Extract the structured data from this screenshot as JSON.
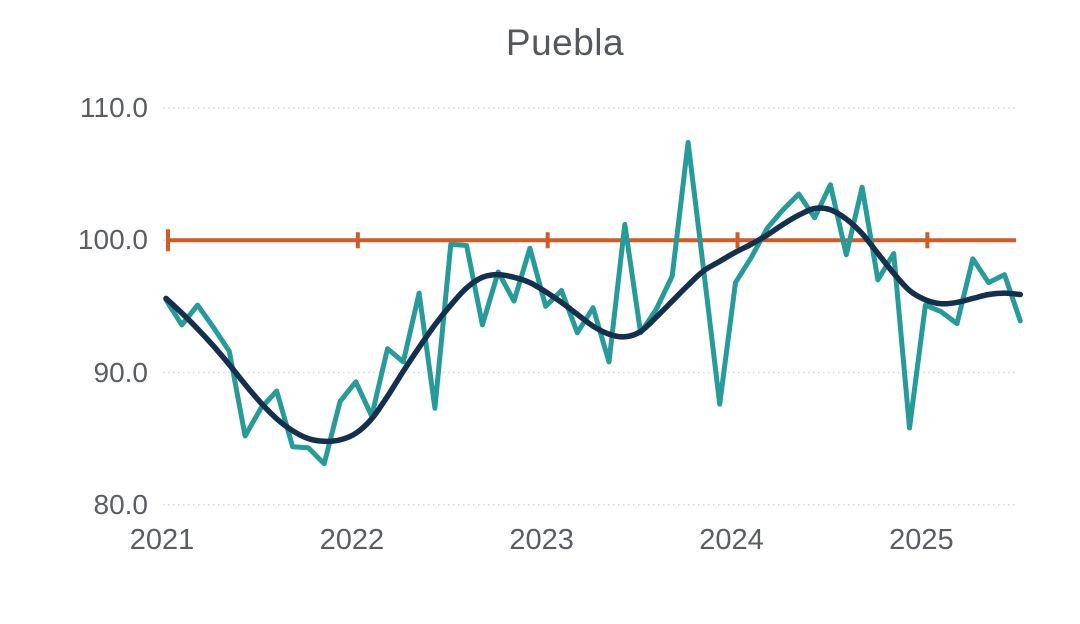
{
  "title": "Puebla",
  "colors": {
    "teal_series": "#279b99",
    "navy_trend": "#14304e",
    "reference_orange": "#cd5c29",
    "gridline": "#d9d9d9",
    "axis_text": "#5a5e63",
    "title_text": "#54585d",
    "background": "#ffffff"
  },
  "chart_data": {
    "type": "line",
    "title": "Puebla",
    "xlabel": "",
    "ylabel": "",
    "x_unit": "month",
    "x_start": "2021-01",
    "x_end": "2025-07",
    "grid": "horizontal-dotted",
    "legend": "none",
    "ylim": [
      80,
      110
    ],
    "y_ticks": [
      {
        "value": 110,
        "label": "110.0"
      },
      {
        "value": 100,
        "label": "100.0"
      },
      {
        "value": 90,
        "label": "90.0"
      },
      {
        "value": 80,
        "label": "80.0"
      }
    ],
    "x_ticks": [
      {
        "month_index": 0,
        "label": "2021"
      },
      {
        "month_index": 12,
        "label": "2022"
      },
      {
        "month_index": 24,
        "label": "2023"
      },
      {
        "month_index": 36,
        "label": "2024"
      },
      {
        "month_index": 48,
        "label": "2025"
      }
    ],
    "reference_line": {
      "value": 100.0,
      "tick_month_indices": [
        0,
        12,
        24,
        36,
        48
      ],
      "description": "horizontal orange benchmark line at 100 with year tick marks"
    },
    "series": [
      {
        "name": "teal-series",
        "style": "jagged",
        "color": "#279b99",
        "values": [
          95.5,
          93.6,
          95.1,
          93.4,
          91.6,
          85.2,
          87.3,
          88.6,
          84.4,
          84.3,
          83.1,
          87.8,
          89.3,
          86.7,
          91.8,
          90.8,
          96.0,
          87.3,
          99.7,
          99.6,
          93.6,
          97.6,
          95.4,
          99.4,
          95.0,
          96.2,
          93.0,
          94.9,
          90.8,
          101.2,
          93.0,
          94.8,
          97.3,
          107.4,
          97.6,
          87.6,
          96.8,
          98.7,
          100.9,
          102.3,
          103.5,
          101.7,
          104.2,
          98.9,
          104.0,
          97.0,
          99.0,
          85.8,
          95.1,
          94.6,
          93.7,
          98.6,
          96.8,
          97.4,
          93.9
        ]
      },
      {
        "name": "navy-trend-series",
        "style": "smooth",
        "color": "#14304e",
        "values": [
          95.6,
          94.5,
          93.3,
          92.0,
          90.6,
          89.1,
          87.7,
          86.5,
          85.6,
          85.0,
          84.8,
          84.9,
          85.4,
          86.5,
          88.2,
          90.1,
          91.9,
          93.6,
          95.1,
          96.4,
          97.2,
          97.4,
          97.2,
          96.8,
          96.1,
          95.3,
          94.4,
          93.5,
          92.9,
          92.7,
          93.1,
          94.2,
          95.4,
          96.6,
          97.7,
          98.4,
          99.1,
          99.7,
          100.4,
          101.2,
          101.9,
          102.4,
          102.3,
          101.6,
          100.5,
          99.0,
          97.5,
          96.2,
          95.5,
          95.2,
          95.3,
          95.6,
          95.9,
          96.0,
          95.9
        ]
      }
    ]
  }
}
